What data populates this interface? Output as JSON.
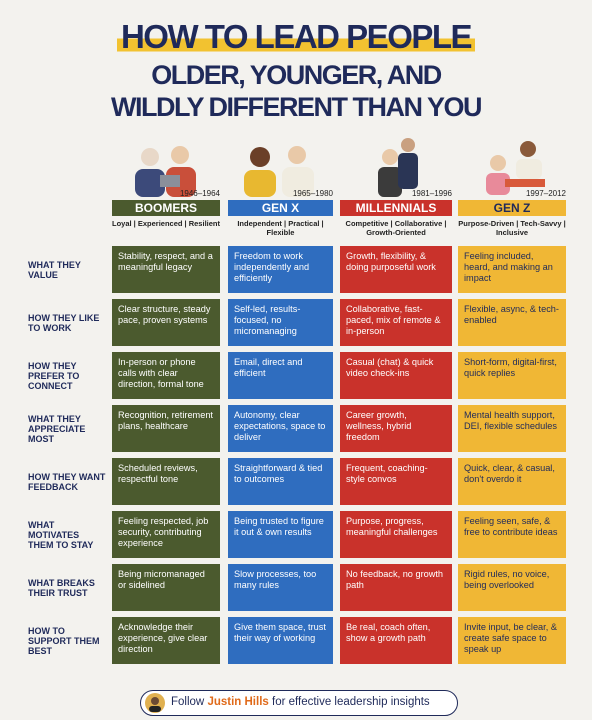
{
  "title": {
    "line1": "HOW TO LEAD PEOPLE",
    "line2": "OLDER, YOUNGER, AND",
    "line3": "WILDLY DIFFERENT THAN YOU"
  },
  "columns": [
    {
      "years": "1946–1964",
      "name": "BOOMERS",
      "traits": "Loyal | Experienced | Resilient"
    },
    {
      "years": "1965–1980",
      "name": "GEN X",
      "traits": "Independent | Practical | Flexible"
    },
    {
      "years": "1981–1996",
      "name": "MILLENNIALS",
      "traits": "Competitive | Collaborative | Growth-Oriented"
    },
    {
      "years": "1997–2012",
      "name": "GEN Z",
      "traits": "Purpose-Driven | Tech-Savvy | Inclusive"
    }
  ],
  "rows": [
    {
      "label": "WHAT THEY VALUE",
      "cells": [
        "Stability, respect, and a meaningful legacy",
        "Freedom to work independently and efficiently",
        "Growth, flexibility, & doing purposeful work",
        "Feeling included, heard, and making an impact"
      ]
    },
    {
      "label": "HOW THEY LIKE TO WORK",
      "cells": [
        "Clear structure, steady pace, proven systems",
        "Self-led, results-focused, no micromanaging",
        "Collaborative, fast-paced, mix of remote & in-person",
        "Flexible, async, & tech-enabled"
      ]
    },
    {
      "label": "HOW THEY PREFER TO CONNECT",
      "cells": [
        "In-person or phone calls with clear direction, formal tone",
        "Email, direct and efficient",
        "Casual (chat) & quick video check-ins",
        "Short-form, digital-first, quick replies"
      ]
    },
    {
      "label": "WHAT THEY APPRECIATE MOST",
      "cells": [
        "Recognition, retirement plans, healthcare",
        "Autonomy, clear expectations, space to deliver",
        "Career growth, wellness, hybrid freedom",
        "Mental health support, DEI, flexible schedules"
      ]
    },
    {
      "label": "HOW THEY WANT FEEDBACK",
      "cells": [
        "Scheduled reviews, respectful tone",
        "Straightforward & tied to outcomes",
        "Frequent, coaching-style convos",
        "Quick, clear, & casual, don't overdo it"
      ]
    },
    {
      "label": "WHAT MOTIVATES THEM TO STAY",
      "cells": [
        "Feeling respected, job security, contributing experience",
        "Being trusted to figure it out & own results",
        "Purpose, progress, meaningful challenges",
        "Feeling seen, safe, & free to contribute ideas"
      ]
    },
    {
      "label": "WHAT BREAKS THEIR TRUST",
      "cells": [
        "Being micromanaged or sidelined",
        "Slow processes, too many rules",
        "No feedback, no growth path",
        "Rigid rules, no voice, being overlooked"
      ]
    },
    {
      "label": "HOW TO SUPPORT THEM BEST",
      "cells": [
        "Acknowledge their experience, give clear direction",
        "Give them space, trust their way of working",
        "Be real, coach often, show a growth path",
        "Invite input, be clear, & create safe space to speak up"
      ]
    }
  ],
  "footer": {
    "prefix": "Follow",
    "name": "Justin Hills",
    "suffix": "for effective leadership insights"
  }
}
